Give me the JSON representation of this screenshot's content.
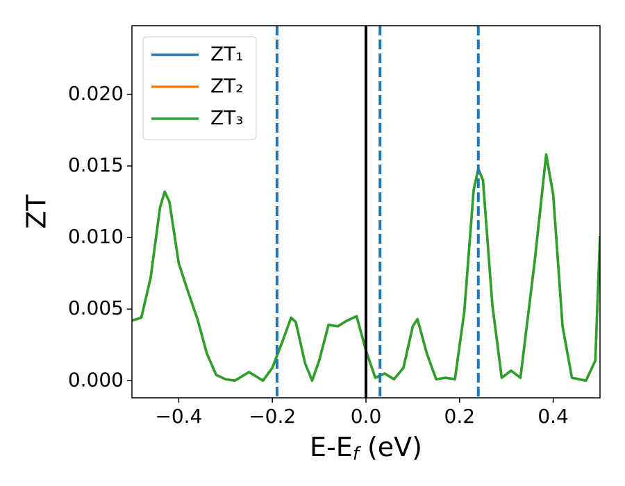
{
  "chart_data": {
    "type": "line",
    "xlabel": {
      "text": "E-E",
      "sub": "f",
      "rest": " (eV)"
    },
    "ylabel": "ZT",
    "x": [
      -0.5,
      -0.48,
      -0.46,
      -0.44,
      -0.43,
      -0.42,
      -0.4,
      -0.38,
      -0.36,
      -0.34,
      -0.32,
      -0.3,
      -0.28,
      -0.25,
      -0.22,
      -0.2,
      -0.18,
      -0.16,
      -0.15,
      -0.13,
      -0.115,
      -0.1,
      -0.08,
      -0.06,
      -0.04,
      -0.02,
      0.0,
      0.02,
      0.04,
      0.06,
      0.08,
      0.1,
      0.11,
      0.13,
      0.15,
      0.17,
      0.19,
      0.21,
      0.23,
      0.24,
      0.25,
      0.27,
      0.29,
      0.31,
      0.33,
      0.36,
      0.385,
      0.4,
      0.42,
      0.44,
      0.47,
      0.49,
      0.5
    ],
    "series": [
      {
        "name": "ZT₁",
        "color": "#1f77b4",
        "values": [
          0.0042,
          0.0044,
          0.0072,
          0.0121,
          0.0132,
          0.0125,
          0.0082,
          0.0062,
          0.0043,
          0.0019,
          0.0004,
          0.0001,
          0.0,
          0.0006,
          0.0,
          0.0009,
          0.0026,
          0.0044,
          0.0041,
          0.0012,
          0.0,
          0.0014,
          0.0039,
          0.0038,
          0.0042,
          0.0045,
          0.0021,
          0.0002,
          0.0005,
          0.0001,
          0.0009,
          0.0038,
          0.0043,
          0.0019,
          0.0001,
          0.0002,
          0.0001,
          0.0048,
          0.0133,
          0.0148,
          0.014,
          0.0053,
          0.0002,
          0.0007,
          0.0002,
          0.0082,
          0.0158,
          0.013,
          0.0038,
          0.0002,
          0.0,
          0.0014,
          0.0101
        ]
      },
      {
        "name": "ZT₂",
        "color": "#ff7f0e",
        "values": [
          0.0042,
          0.0044,
          0.0072,
          0.0121,
          0.0132,
          0.0125,
          0.0082,
          0.0062,
          0.0043,
          0.0019,
          0.0004,
          0.0001,
          0.0,
          0.0006,
          0.0,
          0.0009,
          0.0026,
          0.0044,
          0.0041,
          0.0012,
          0.0,
          0.0014,
          0.0039,
          0.0038,
          0.0042,
          0.0045,
          0.0021,
          0.0002,
          0.0005,
          0.0001,
          0.0009,
          0.0038,
          0.0043,
          0.0019,
          0.0001,
          0.0002,
          0.0001,
          0.0048,
          0.0133,
          0.0148,
          0.014,
          0.0053,
          0.0002,
          0.0007,
          0.0002,
          0.0082,
          0.0158,
          0.013,
          0.0038,
          0.0002,
          0.0,
          0.0014,
          0.0101
        ]
      },
      {
        "name": "ZT₃",
        "color": "#2ca02c",
        "values": [
          0.0042,
          0.0044,
          0.0072,
          0.0121,
          0.0132,
          0.0125,
          0.0082,
          0.0062,
          0.0043,
          0.0019,
          0.0004,
          0.0001,
          0.0,
          0.0006,
          0.0,
          0.0009,
          0.0026,
          0.0044,
          0.0041,
          0.0012,
          0.0,
          0.0014,
          0.0039,
          0.0038,
          0.0042,
          0.0045,
          0.0021,
          0.0002,
          0.0005,
          0.0001,
          0.0009,
          0.0038,
          0.0043,
          0.0019,
          0.0001,
          0.0002,
          0.0001,
          0.0048,
          0.0133,
          0.0148,
          0.014,
          0.0053,
          0.0002,
          0.0007,
          0.0002,
          0.0082,
          0.0158,
          0.013,
          0.0038,
          0.0002,
          0.0,
          0.0014,
          0.0101
        ]
      }
    ],
    "vlines": [
      {
        "x": 0,
        "color": "#000000",
        "style": "solid"
      },
      {
        "x": -0.19,
        "color": "#1f77b4",
        "style": "dashed"
      },
      {
        "x": 0.03,
        "color": "#1f77b4",
        "style": "dashed"
      },
      {
        "x": 0.24,
        "color": "#1f77b4",
        "style": "dashed"
      }
    ],
    "xlim": [
      -0.5,
      0.5
    ],
    "xticks": [
      {
        "value": -0.4,
        "label": "−0.4"
      },
      {
        "value": -0.2,
        "label": "−0.2"
      },
      {
        "value": 0.0,
        "label": "0.0"
      },
      0.2,
      0.4
    ],
    "ylim": [
      -0.0012,
      0.0248
    ],
    "yticks": [
      {
        "value": 0,
        "label": "0.000"
      },
      0.005,
      {
        "value": 0.01,
        "label": "0.010"
      },
      0.015,
      {
        "value": 0.02,
        "label": "0.020"
      }
    ],
    "legend": "upper left"
  }
}
